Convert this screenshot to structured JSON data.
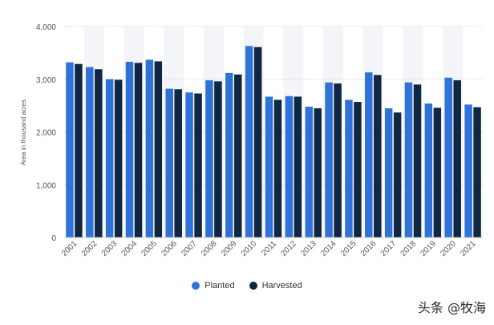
{
  "chart_data": {
    "type": "bar",
    "categories": [
      "2001",
      "2002",
      "2003",
      "2004",
      "2005",
      "2006",
      "2007",
      "2008",
      "2009",
      "2010",
      "2011",
      "2012",
      "2013",
      "2014",
      "2015",
      "2016",
      "2017",
      "2018",
      "2019",
      "2020",
      "2021"
    ],
    "series": [
      {
        "name": "Planted",
        "color": "#2f73d8",
        "values": [
          3320,
          3230,
          3000,
          3330,
          3370,
          2820,
          2750,
          2980,
          3120,
          3630,
          2670,
          2680,
          2480,
          2940,
          2610,
          3130,
          2450,
          2940,
          2540,
          3030,
          2520
        ]
      },
      {
        "name": "Harvested",
        "color": "#0f2743",
        "values": [
          3290,
          3190,
          2990,
          3310,
          3340,
          2810,
          2730,
          2960,
          3090,
          3610,
          2610,
          2670,
          2450,
          2920,
          2570,
          3080,
          2370,
          2900,
          2460,
          2980,
          2470
        ]
      }
    ],
    "ylabel": "Area in thousand acres",
    "ylim": [
      0,
      4000
    ],
    "yticks": [
      "0",
      "1,000",
      "2,000",
      "3,000",
      "4,000"
    ],
    "legend_position": "bottom-center",
    "grid": true
  },
  "watermark": "头条 @牧海"
}
